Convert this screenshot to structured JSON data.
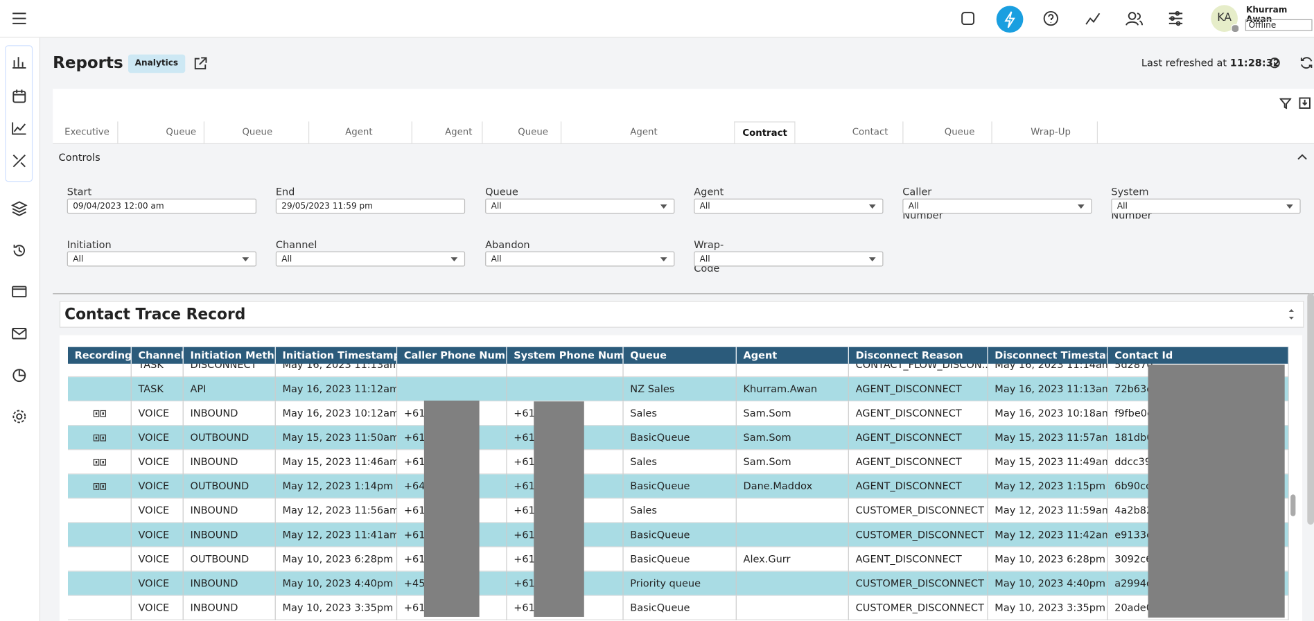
{
  "header": {
    "initials": "KA",
    "user_name": "Khurram Awan",
    "status": "Offline"
  },
  "page": {
    "title": "Reports",
    "badge": "Analytics",
    "refreshed_label": "Last refreshed at",
    "refreshed_time": "11:28:32"
  },
  "tabs": [
    "Executive Summary",
    "Queue Trends",
    "Queue Performance",
    "Agent Performance",
    "Agent Status",
    "Queue Interval Report",
    "Agent Interval Report",
    "Contract Trace Record",
    "Contact Forensics",
    "Queue Planning",
    "Wrap-Up Performance"
  ],
  "active_tab": 7,
  "controls": {
    "title": "Controls",
    "fields": [
      {
        "label": "Start Date",
        "value": "09/04/2023 12:00 am",
        "kind": "text"
      },
      {
        "label": "End Date",
        "value": "29/05/2023 11:59 pm",
        "kind": "text"
      },
      {
        "label": "Queue",
        "value": "All",
        "kind": "select"
      },
      {
        "label": "Agent",
        "value": "All",
        "kind": "select"
      },
      {
        "label": "Caller Phone Number",
        "value": "All",
        "kind": "select"
      },
      {
        "label": "System Phone Number",
        "value": "All",
        "kind": "select"
      },
      {
        "label": "Initiation Method",
        "value": "All",
        "kind": "select"
      },
      {
        "label": "Channel",
        "value": "All",
        "kind": "select"
      },
      {
        "label": "Abandon Selector",
        "value": "All",
        "kind": "select"
      },
      {
        "label": "Wrap-Up Code",
        "value": "All",
        "kind": "select"
      }
    ]
  },
  "table": {
    "title": "Contact Trace Record",
    "columns": [
      "Recording",
      "Channel",
      "Initiation Method",
      "Initiation Timestamp",
      "Caller Phone Number",
      "System Phone Number",
      "Queue",
      "Agent",
      "Disconnect Reason",
      "Disconnect Timestamp",
      "Contact Id"
    ],
    "rows": [
      {
        "recording": false,
        "cells": [
          null,
          "TASK",
          "DISCONNECT",
          "May 16, 2023 11:13am",
          null,
          null,
          null,
          null,
          "CONTACT_FLOW_DISCON...",
          "May 16, 2023 11:14am",
          "5d2870"
        ]
      },
      {
        "recording": false,
        "cells": [
          null,
          "TASK",
          "API",
          "May 16, 2023 11:12am",
          null,
          null,
          "NZ Sales",
          "Khurram.Awan",
          "AGENT_DISCONNECT",
          "May 16, 2023 11:13am",
          "72b63d"
        ]
      },
      {
        "recording": true,
        "cells": [
          null,
          "VOICE",
          "INBOUND",
          "May 16, 2023 10:12am",
          "+614",
          "+612",
          "Sales",
          "Sam.Som",
          "AGENT_DISCONNECT",
          "May 16, 2023 10:18am",
          "f9fbe0c"
        ]
      },
      {
        "recording": true,
        "cells": [
          null,
          "VOICE",
          "OUTBOUND",
          "May 15, 2023 11:50am",
          "+614",
          "+612",
          "BasicQueue",
          "Sam.Som",
          "AGENT_DISCONNECT",
          "May 15, 2023 11:57am",
          "181db0"
        ]
      },
      {
        "recording": true,
        "cells": [
          null,
          "VOICE",
          "INBOUND",
          "May 15, 2023 11:46am",
          "+614",
          "+612",
          "Sales",
          "Sam.Som",
          "AGENT_DISCONNECT",
          "May 15, 2023 11:49am",
          "ddcc394"
        ]
      },
      {
        "recording": true,
        "cells": [
          null,
          "VOICE",
          "OUTBOUND",
          "May 12, 2023 1:14pm",
          "+642",
          "+612",
          "BasicQueue",
          "Dane.Maddox",
          "AGENT_DISCONNECT",
          "May 12, 2023 1:15pm",
          "6b90cca"
        ]
      },
      {
        "recording": false,
        "cells": [
          null,
          "VOICE",
          "INBOUND",
          "May 12, 2023 11:56am",
          "+614",
          "+612",
          "Sales",
          null,
          "CUSTOMER_DISCONNECT",
          "May 12, 2023 11:59am",
          "4a2b82"
        ]
      },
      {
        "recording": false,
        "cells": [
          null,
          "VOICE",
          "INBOUND",
          "May 12, 2023 11:41am",
          "+614",
          "+612",
          "BasicQueue",
          null,
          "CUSTOMER_DISCONNECT",
          "May 12, 2023 11:42am",
          "e9133c5"
        ]
      },
      {
        "recording": false,
        "cells": [
          null,
          "VOICE",
          "OUTBOUND",
          "May 10, 2023 6:28pm",
          "+614",
          "+612",
          "BasicQueue",
          "Alex.Gurr",
          "AGENT_DISCONNECT",
          "May 10, 2023 6:28pm",
          "3092c6"
        ]
      },
      {
        "recording": false,
        "cells": [
          null,
          "VOICE",
          "INBOUND",
          "May 10, 2023 4:40pm",
          "+457",
          "+612",
          "Priority queue",
          null,
          "CUSTOMER_DISCONNECT",
          "May 10, 2023 4:40pm",
          "a2994d"
        ]
      },
      {
        "recording": false,
        "cells": [
          null,
          "VOICE",
          "INBOUND",
          "May 10, 2023 3:35pm",
          "+614",
          "+612",
          "BasicQueue",
          null,
          "CUSTOMER_DISCONNECT",
          "May 10, 2023 3:35pm",
          "20ade0"
        ]
      }
    ]
  }
}
